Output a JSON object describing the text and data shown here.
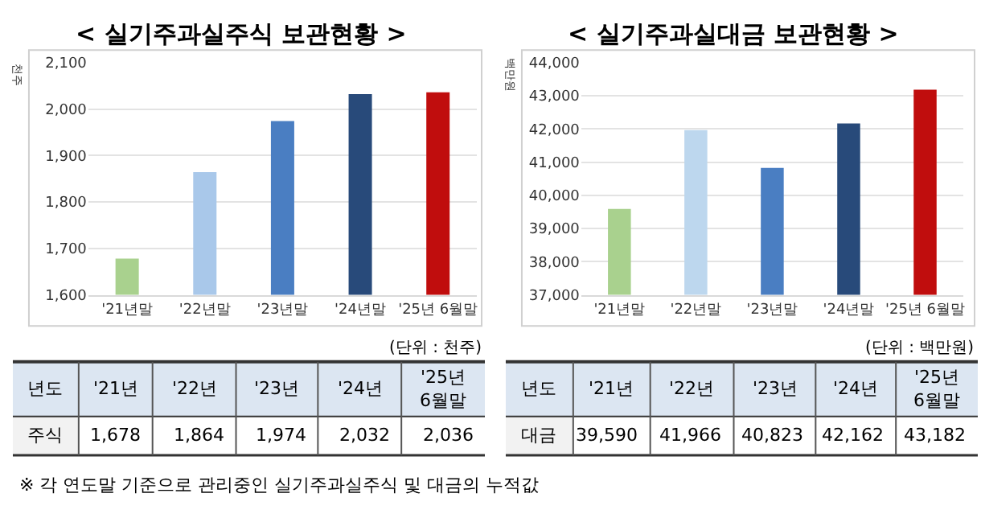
{
  "chart_data": [
    {
      "type": "bar",
      "title": "< 실기주과실주식 보관현황 >",
      "ylabel": "천주",
      "categories": [
        "'21년말",
        "'22년말",
        "'23년말",
        "'24년말",
        "'25년 6월말"
      ],
      "values": [
        1678,
        1864,
        1974,
        2032,
        2036
      ],
      "colors": [
        "#a9d18e",
        "#a9c8ea",
        "#4a7ec2",
        "#284a7a",
        "#c00d0d"
      ],
      "ylim": [
        1600,
        2100
      ],
      "yticks": [
        {
          "value": 1600,
          "label": "1,600"
        },
        {
          "value": 1700,
          "label": "1,700"
        },
        {
          "value": 1800,
          "label": "1,800"
        },
        {
          "value": 1900,
          "label": "1,900"
        },
        {
          "value": 2000,
          "label": "2,000"
        },
        {
          "value": 2100,
          "label": "2,100"
        }
      ],
      "grid": "y",
      "value_labels": [
        "1,678",
        "1,864",
        "1,974",
        "2,032",
        "2,036"
      ],
      "annotations": [
        "(단위 : 천주)",
        "년도",
        "'21년",
        "'22년",
        "'23년",
        "'24년",
        "'25년\n6월말",
        "주식",
        "※ 각 연도말 기준으로 관리중인 실기주과실주식 및 대금의 누적값"
      ]
    },
    {
      "type": "bar",
      "title": "< 실기주과실대금 보관현황 >",
      "ylabel": "백만원",
      "categories": [
        "'21년말",
        "'22년말",
        "'23년말",
        "'24년말",
        "'25년 6월말"
      ],
      "values": [
        39590,
        41966,
        40823,
        42162,
        43182
      ],
      "colors": [
        "#a9d18e",
        "#bdd7ee",
        "#4a7ec2",
        "#284a7a",
        "#c00d0d"
      ],
      "ylim": [
        37000,
        44000
      ],
      "yticks": [
        {
          "value": 37000,
          "label": "37,000"
        },
        {
          "value": 38000,
          "label": "38,000"
        },
        {
          "value": 39000,
          "label": "39,000"
        },
        {
          "value": 40000,
          "label": "40,000"
        },
        {
          "value": 41000,
          "label": "41,000"
        },
        {
          "value": 42000,
          "label": "42,000"
        },
        {
          "value": 43000,
          "label": "43,000"
        },
        {
          "value": 44000,
          "label": "44,000"
        }
      ],
      "grid": "y",
      "value_labels": [
        "39,590",
        "41,966",
        "40,823",
        "42,162",
        "43,182"
      ],
      "annotations": [
        "(단위 : 백만원)",
        "년도",
        "'21년",
        "'22년",
        "'23년",
        "'24년",
        "'25년\n6월말",
        "대금"
      ]
    }
  ]
}
